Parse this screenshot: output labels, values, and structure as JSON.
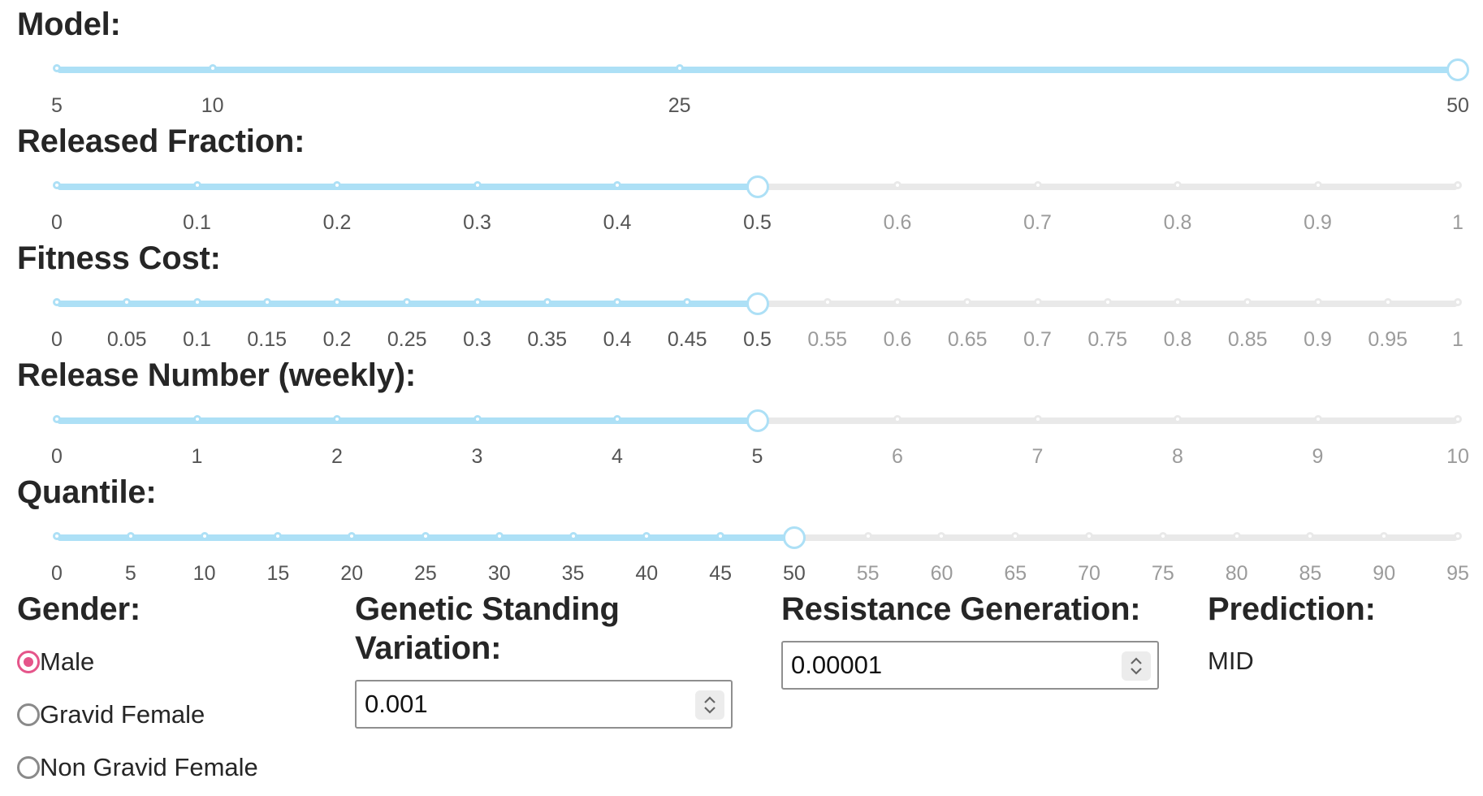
{
  "sliders": [
    {
      "id": "model",
      "label": "Model:",
      "ticks": [
        "5",
        "10",
        "25",
        "50"
      ],
      "tick_values": [
        5,
        10,
        25,
        50
      ],
      "selected": "50",
      "min": 5,
      "max": 50,
      "fill_to_end": true
    },
    {
      "id": "released_fraction",
      "label": "Released Fraction:",
      "ticks": [
        "0",
        "0.1",
        "0.2",
        "0.3",
        "0.4",
        "0.5",
        "0.6",
        "0.7",
        "0.8",
        "0.9",
        "1"
      ],
      "selected": "0.5",
      "min": 0,
      "max": 1
    },
    {
      "id": "fitness_cost",
      "label": "Fitness Cost:",
      "ticks": [
        "0",
        "0.05",
        "0.1",
        "0.15",
        "0.2",
        "0.25",
        "0.3",
        "0.35",
        "0.4",
        "0.45",
        "0.5",
        "0.55",
        "0.6",
        "0.65",
        "0.7",
        "0.75",
        "0.8",
        "0.85",
        "0.9",
        "0.95",
        "1"
      ],
      "selected": "0.5",
      "min": 0,
      "max": 1
    },
    {
      "id": "release_number",
      "label": "Release Number (weekly):",
      "ticks": [
        "0",
        "1",
        "2",
        "3",
        "4",
        "5",
        "6",
        "7",
        "8",
        "9",
        "10"
      ],
      "selected": "5",
      "min": 0,
      "max": 10
    },
    {
      "id": "quantile",
      "label": "Quantile:",
      "ticks": [
        "0",
        "5",
        "10",
        "15",
        "20",
        "25",
        "30",
        "35",
        "40",
        "45",
        "50",
        "55",
        "60",
        "65",
        "70",
        "75",
        "80",
        "85",
        "90",
        "95"
      ],
      "selected": "50",
      "min": 0,
      "max": 95
    }
  ],
  "gender": {
    "label": "Gender:",
    "options": [
      "Male",
      "Gravid Female",
      "Non Gravid Female"
    ],
    "selected": "Male"
  },
  "genetic_standing_variation": {
    "label": "Genetic Standing Variation:",
    "value": "0.001"
  },
  "resistance_generation": {
    "label": "Resistance Generation:",
    "value": "0.00001"
  },
  "prediction": {
    "label": "Prediction:",
    "value": "MID"
  },
  "colors": {
    "accent": "#ade0f6",
    "rail": "#e9e9e9",
    "radio_selected": "#e5558a"
  }
}
